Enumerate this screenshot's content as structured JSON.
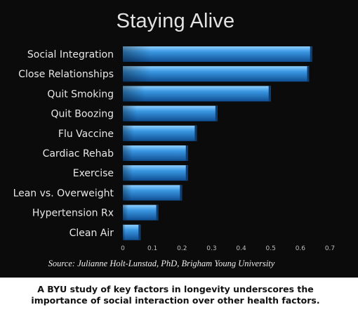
{
  "chart_data": {
    "type": "bar",
    "orientation": "horizontal",
    "title": "Staying Alive",
    "categories": [
      "Social Integration",
      "Close Relationships",
      "Quit Smoking",
      "Quit Boozing",
      "Flu Vaccine",
      "Cardiac Rehab",
      "Exercise",
      "Lean vs. Overweight",
      "Hypertension Rx",
      "Clean Air"
    ],
    "values": [
      0.64,
      0.63,
      0.5,
      0.32,
      0.25,
      0.22,
      0.22,
      0.2,
      0.12,
      0.06
    ],
    "ticks": [
      "0",
      "0.1",
      "0.2",
      "0.3",
      "0.4",
      "0.5",
      "0.6",
      "0.7"
    ],
    "xlim": [
      0,
      0.7
    ],
    "grid": false,
    "bar_color": "#2a86d6",
    "background": "#0b0b0b"
  },
  "source": "Source: Julianne Holt-Lunstad, PhD, Brigham Young University",
  "caption": {
    "line1": "A BYU study of key factors in longevity underscores the",
    "line2": "importance of social interaction over other health factors."
  }
}
